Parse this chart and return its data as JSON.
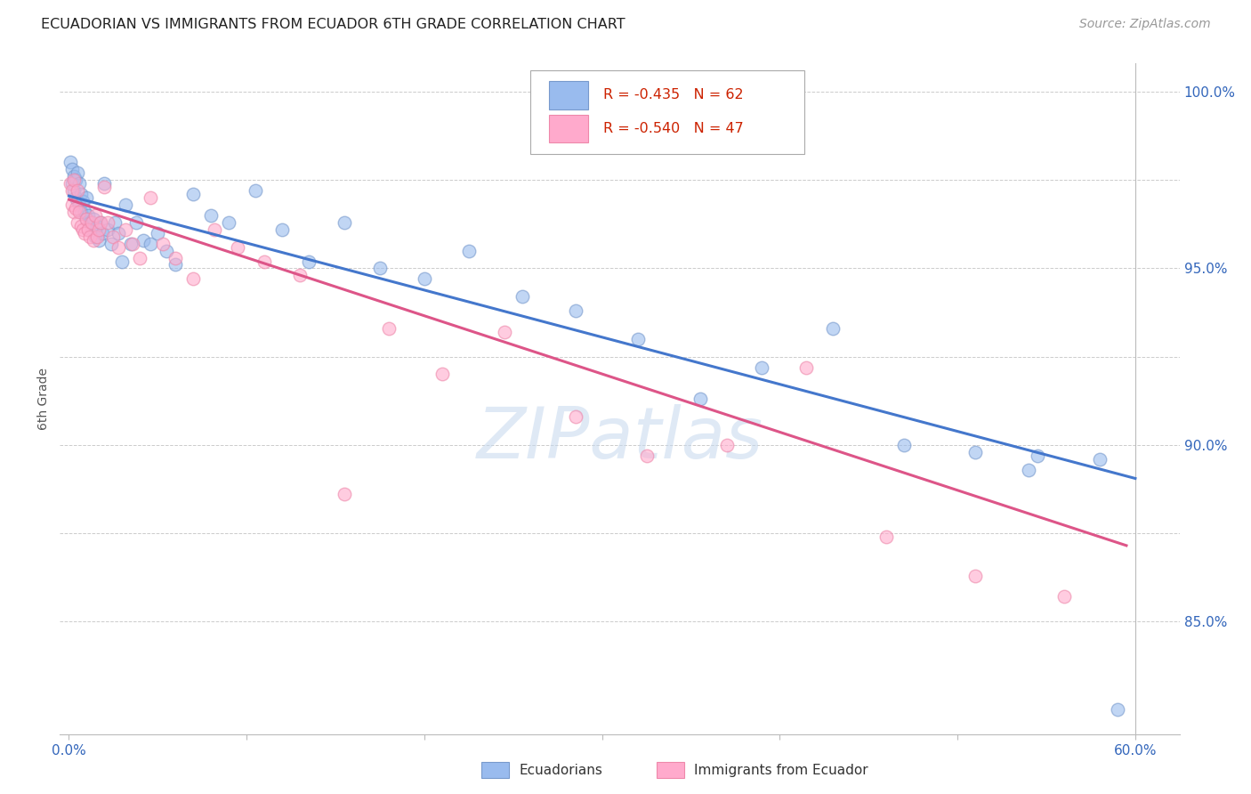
{
  "title": "ECUADORIAN VS IMMIGRANTS FROM ECUADOR 6TH GRADE CORRELATION CHART",
  "source": "Source: ZipAtlas.com",
  "ylabel": "6th Grade",
  "xlim": [
    -0.005,
    0.625
  ],
  "ylim": [
    0.818,
    1.008
  ],
  "background_color": "#ffffff",
  "grid_color": "#cccccc",
  "blue_scatter_color": "#99bbee",
  "pink_scatter_color": "#ffaacc",
  "blue_scatter_edge": "#7799cc",
  "pink_scatter_edge": "#ee88aa",
  "line_blue": "#4477cc",
  "line_pink": "#dd5588",
  "legend_R_blue": "-0.435",
  "legend_N_blue": "62",
  "legend_R_pink": "-0.540",
  "legend_N_pink": "47",
  "legend_label_blue": "Ecuadorians",
  "legend_label_pink": "Immigrants from Ecuador",
  "ytick_positions": [
    0.85,
    0.875,
    0.9,
    0.925,
    0.95,
    0.975,
    1.0
  ],
  "ytick_labels": [
    "85.0%",
    "",
    "90.0%",
    "",
    "95.0%",
    "",
    "100.0%"
  ],
  "xtick_positions": [
    0.0,
    0.1,
    0.2,
    0.3,
    0.4,
    0.5,
    0.6
  ],
  "xtick_labels": [
    "0.0%",
    "",
    "",
    "",
    "",
    "",
    "60.0%"
  ],
  "blue_line_x": [
    0.0,
    0.6
  ],
  "blue_line_y": [
    0.9705,
    0.8905
  ],
  "pink_line_x": [
    0.0,
    0.595
  ],
  "pink_line_y": [
    0.9695,
    0.8715
  ],
  "blue_x": [
    0.001,
    0.002,
    0.002,
    0.003,
    0.003,
    0.004,
    0.004,
    0.005,
    0.005,
    0.006,
    0.006,
    0.007,
    0.007,
    0.008,
    0.009,
    0.01,
    0.01,
    0.011,
    0.012,
    0.013,
    0.014,
    0.015,
    0.016,
    0.017,
    0.018,
    0.019,
    0.02,
    0.022,
    0.024,
    0.026,
    0.028,
    0.03,
    0.032,
    0.035,
    0.038,
    0.042,
    0.046,
    0.05,
    0.055,
    0.06,
    0.07,
    0.08,
    0.09,
    0.105,
    0.12,
    0.135,
    0.155,
    0.175,
    0.2,
    0.225,
    0.255,
    0.285,
    0.32,
    0.355,
    0.39,
    0.43,
    0.47,
    0.51,
    0.545,
    0.58,
    0.54,
    0.59
  ],
  "blue_y": [
    0.98,
    0.978,
    0.974,
    0.976,
    0.972,
    0.975,
    0.97,
    0.977,
    0.969,
    0.974,
    0.968,
    0.971,
    0.966,
    0.969,
    0.966,
    0.97,
    0.964,
    0.965,
    0.963,
    0.961,
    0.964,
    0.959,
    0.962,
    0.958,
    0.963,
    0.96,
    0.974,
    0.961,
    0.957,
    0.963,
    0.96,
    0.952,
    0.968,
    0.957,
    0.963,
    0.958,
    0.957,
    0.96,
    0.955,
    0.951,
    0.971,
    0.965,
    0.963,
    0.972,
    0.961,
    0.952,
    0.963,
    0.95,
    0.947,
    0.955,
    0.942,
    0.938,
    0.93,
    0.913,
    0.922,
    0.933,
    0.9,
    0.898,
    0.897,
    0.896,
    0.893,
    0.825
  ],
  "pink_x": [
    0.001,
    0.002,
    0.002,
    0.003,
    0.003,
    0.004,
    0.005,
    0.005,
    0.006,
    0.007,
    0.008,
    0.009,
    0.01,
    0.011,
    0.012,
    0.013,
    0.014,
    0.015,
    0.016,
    0.017,
    0.018,
    0.02,
    0.022,
    0.025,
    0.028,
    0.032,
    0.036,
    0.04,
    0.046,
    0.053,
    0.06,
    0.07,
    0.082,
    0.095,
    0.11,
    0.13,
    0.155,
    0.18,
    0.21,
    0.245,
    0.285,
    0.325,
    0.37,
    0.415,
    0.46,
    0.51,
    0.56
  ],
  "pink_y": [
    0.974,
    0.972,
    0.968,
    0.975,
    0.966,
    0.967,
    0.972,
    0.963,
    0.966,
    0.962,
    0.961,
    0.96,
    0.964,
    0.961,
    0.959,
    0.963,
    0.958,
    0.965,
    0.959,
    0.961,
    0.963,
    0.973,
    0.963,
    0.959,
    0.956,
    0.961,
    0.957,
    0.953,
    0.97,
    0.957,
    0.953,
    0.947,
    0.961,
    0.956,
    0.952,
    0.948,
    0.886,
    0.933,
    0.92,
    0.932,
    0.908,
    0.897,
    0.9,
    0.922,
    0.874,
    0.863,
    0.857
  ]
}
